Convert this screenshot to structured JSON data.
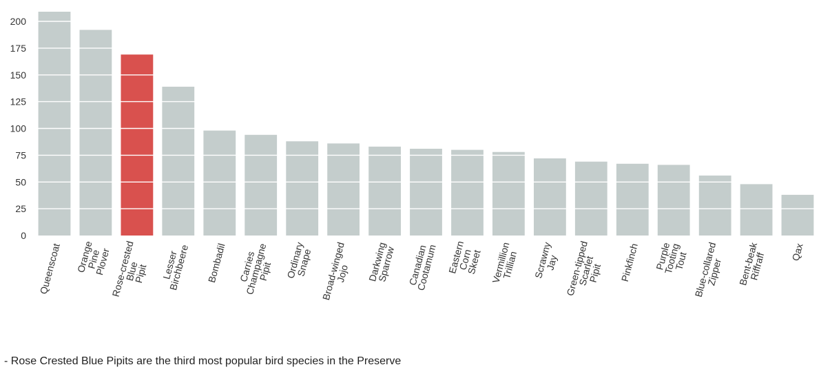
{
  "chart_data": {
    "type": "bar",
    "categories": [
      [
        "Queenscoat"
      ],
      [
        "Orange",
        "Pine",
        "Plover"
      ],
      [
        "Rose-crested",
        "Blue",
        "Pipit"
      ],
      [
        "Lesser",
        "Birchbeere"
      ],
      [
        "Bombadil"
      ],
      [
        "Carries",
        "Champagne",
        "Pipit"
      ],
      [
        "Ordinary",
        "Snape"
      ],
      [
        "Broad-winged",
        "Jojo"
      ],
      [
        "Darkwing",
        "Sparrow"
      ],
      [
        "Canadian",
        "Cootamum"
      ],
      [
        "Eastern",
        "Corn",
        "Skeet"
      ],
      [
        "Vermillion",
        "Trillian"
      ],
      [
        "Scrawny",
        "Jay"
      ],
      [
        "Green-tipped",
        "Scarlet",
        "Pipit"
      ],
      [
        "Pinkfinch"
      ],
      [
        "Purple",
        "Tooting",
        "Tout"
      ],
      [
        "Blue-collared",
        "Zipper"
      ],
      [
        "Bent-beak",
        "Riffraff"
      ],
      [
        "Qax"
      ]
    ],
    "values": [
      209,
      192,
      169,
      139,
      98,
      94,
      88,
      86,
      83,
      81,
      80,
      78,
      72,
      69,
      67,
      66,
      56,
      48,
      38
    ],
    "highlight_index": 2,
    "yticks": [
      "0",
      "25",
      "50",
      "75",
      "100",
      "125",
      "150",
      "175",
      "200"
    ],
    "ylim": [
      0,
      212
    ],
    "title": "",
    "xlabel": "",
    "ylabel": "",
    "grid": "horizontal white gridlines over bars",
    "colors": {
      "bar": "#c4cdcc",
      "highlight": "#d9514e",
      "grid": "#ffffff",
      "text": "#333333"
    }
  },
  "note": "- Rose Crested Blue Pipits are the third most popular bird species in the Preserve"
}
